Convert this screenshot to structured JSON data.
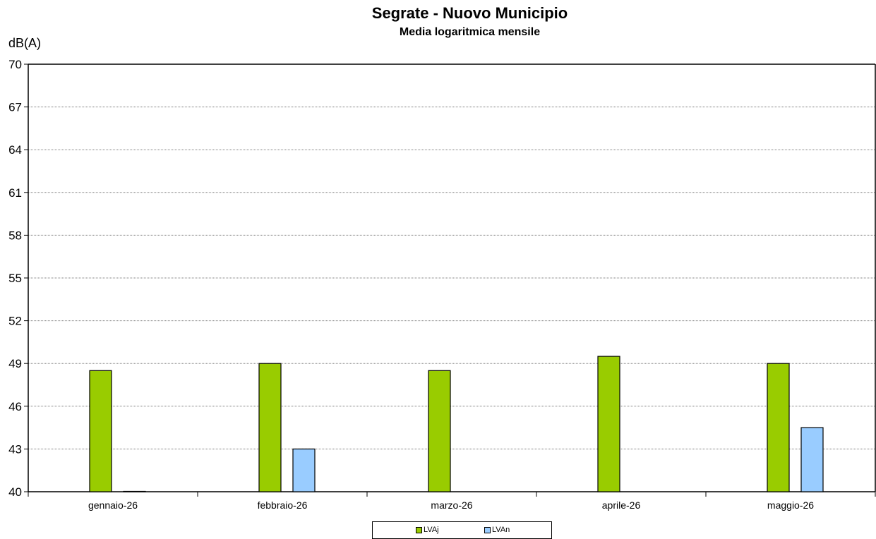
{
  "chart_data": {
    "type": "bar",
    "title": "Segrate - Nuovo Municipio",
    "subtitle": "Media logaritmica mensile",
    "ylabel": "dB(A)",
    "xlabel": "",
    "ylim": [
      40,
      70
    ],
    "yticks": [
      40,
      43,
      46,
      49,
      52,
      55,
      58,
      61,
      64,
      67,
      70
    ],
    "grid": true,
    "legend_position": "bottom",
    "categories": [
      "gennaio-26",
      "febbraio-26",
      "marzo-26",
      "aprile-26",
      "maggio-26"
    ],
    "series": [
      {
        "name": "LVAj",
        "color": "#99cc00",
        "values": [
          48.5,
          49.0,
          48.5,
          49.5,
          49.0
        ]
      },
      {
        "name": "LVAn",
        "color": "#99ccff",
        "values": [
          40.0,
          43.0,
          null,
          null,
          44.5
        ]
      }
    ]
  }
}
